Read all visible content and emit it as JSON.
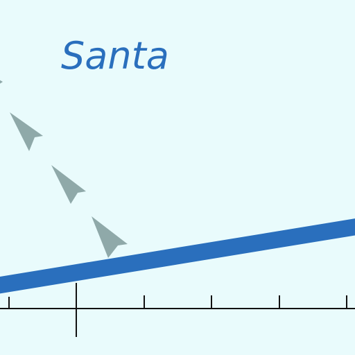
{
  "label": {
    "text": "Santa"
  },
  "colors": {
    "background": "#e9fbfc",
    "line": "#2a6fbd",
    "arrows": "#8fa9a9",
    "axis": "#111111",
    "label": "#2a6fbd"
  },
  "icons": {
    "arrow": "arrowhead-icon"
  }
}
